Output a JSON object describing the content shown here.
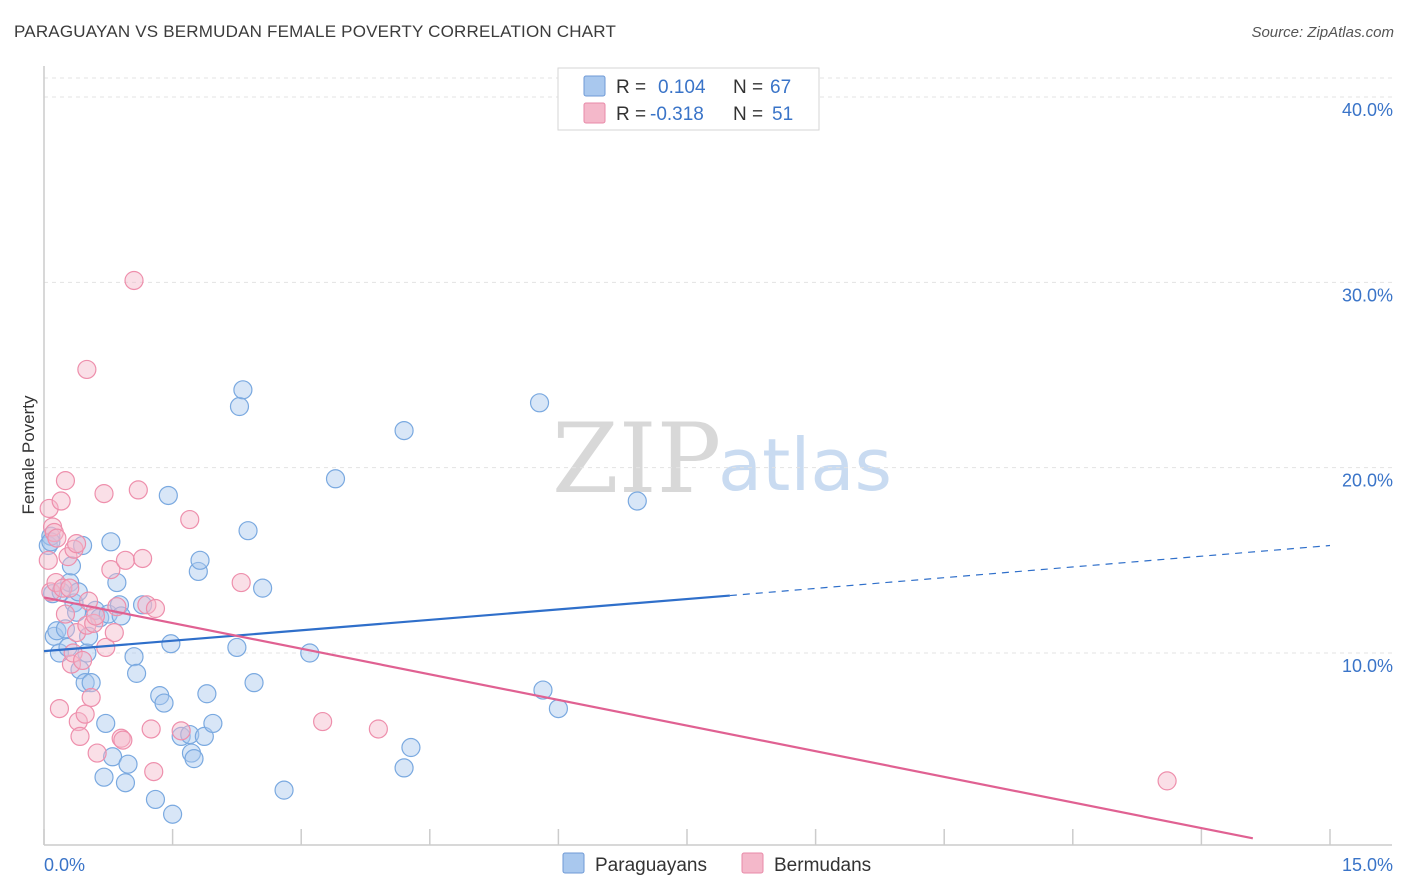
{
  "header": {
    "title": "PARAGUAYAN VS BERMUDAN FEMALE POVERTY CORRELATION CHART",
    "source": "Source: ZipAtlas.com"
  },
  "watermark": {
    "zip": "ZIP",
    "atlas": "atlas"
  },
  "legend_top": [
    {
      "r_label": "R =",
      "r_value": "0.104",
      "n_label": "N =",
      "n_value": "67",
      "color": "#a9c8ee"
    },
    {
      "r_label": "R =",
      "r_value": "-0.318",
      "n_label": "N =",
      "n_value": "51",
      "color": "#f4b8ca"
    }
  ],
  "legend_bottom": [
    {
      "label": "Paraguayans",
      "color": "#a9c8ee"
    },
    {
      "label": "Bermudans",
      "color": "#f4b8ca"
    }
  ],
  "chart_data": {
    "type": "scatter",
    "title": "PARAGUAYAN VS BERMUDAN FEMALE POVERTY CORRELATION CHART",
    "xlabel": "",
    "ylabel": "Female Poverty",
    "xlim": [
      0,
      15
    ],
    "ylim": [
      0,
      42
    ],
    "x_tick_labels": [
      {
        "value": 0,
        "label": "0.0%"
      },
      {
        "value": 15,
        "label": "15.0%"
      }
    ],
    "y_tick_labels": [
      {
        "value": 10,
        "label": "10.0%"
      },
      {
        "value": 20,
        "label": "20.0%"
      },
      {
        "value": 30,
        "label": "30.0%"
      },
      {
        "value": 40,
        "label": "40.0%"
      }
    ],
    "series": [
      {
        "name": "Paraguayans",
        "color": "#7aa9e0",
        "fill": "#a9c8ee",
        "trend_color": "#2f6fca",
        "trend": {
          "x0": 0,
          "y0": 10.1,
          "x1": 8.0,
          "y1": 13.1,
          "dash_to_x": 15,
          "dash_to_y": 15.8
        },
        "points": [
          [
            0.05,
            15.8
          ],
          [
            0.08,
            16.3
          ],
          [
            0.1,
            13.2
          ],
          [
            0.12,
            10.9
          ],
          [
            0.15,
            11.2
          ],
          [
            0.18,
            10.0
          ],
          [
            0.2,
            13.3
          ],
          [
            0.25,
            11.3
          ],
          [
            0.28,
            10.3
          ],
          [
            0.3,
            13.8
          ],
          [
            0.32,
            14.7
          ],
          [
            0.35,
            12.7
          ],
          [
            0.38,
            12.2
          ],
          [
            0.4,
            13.3
          ],
          [
            0.42,
            9.1
          ],
          [
            0.45,
            15.8
          ],
          [
            0.48,
            8.4
          ],
          [
            0.5,
            10.0
          ],
          [
            0.52,
            10.9
          ],
          [
            0.55,
            8.4
          ],
          [
            0.6,
            12.3
          ],
          [
            0.65,
            11.9
          ],
          [
            0.7,
            3.3
          ],
          [
            0.72,
            6.2
          ],
          [
            0.75,
            12.1
          ],
          [
            0.78,
            16.0
          ],
          [
            0.8,
            4.4
          ],
          [
            0.85,
            13.8
          ],
          [
            0.88,
            12.6
          ],
          [
            0.9,
            12.0
          ],
          [
            0.95,
            3.0
          ],
          [
            0.98,
            4.0
          ],
          [
            1.05,
            9.8
          ],
          [
            1.08,
            8.9
          ],
          [
            1.15,
            12.6
          ],
          [
            1.3,
            2.1
          ],
          [
            1.35,
            7.7
          ],
          [
            1.4,
            7.3
          ],
          [
            1.45,
            18.5
          ],
          [
            1.48,
            10.5
          ],
          [
            1.5,
            1.3
          ],
          [
            1.6,
            5.5
          ],
          [
            1.7,
            5.6
          ],
          [
            1.72,
            4.6
          ],
          [
            1.75,
            4.3
          ],
          [
            1.8,
            14.4
          ],
          [
            1.82,
            15.0
          ],
          [
            1.87,
            5.5
          ],
          [
            1.9,
            7.8
          ],
          [
            1.97,
            6.2
          ],
          [
            2.25,
            10.3
          ],
          [
            2.28,
            23.3
          ],
          [
            2.32,
            24.2
          ],
          [
            2.38,
            16.6
          ],
          [
            2.45,
            8.4
          ],
          [
            2.55,
            13.5
          ],
          [
            2.8,
            2.6
          ],
          [
            3.1,
            10.0
          ],
          [
            3.4,
            19.4
          ],
          [
            4.2,
            3.8
          ],
          [
            4.28,
            4.9
          ],
          [
            4.2,
            22.0
          ],
          [
            5.78,
            23.5
          ],
          [
            5.82,
            8.0
          ],
          [
            6.0,
            7.0
          ],
          [
            6.92,
            18.2
          ],
          [
            0.08,
            16.0
          ]
        ]
      },
      {
        "name": "Bermudans",
        "color": "#ee8fac",
        "fill": "#f4b8ca",
        "trend_color": "#e06192",
        "trend": {
          "x0": 0,
          "y0": 13.0,
          "x1": 14.1,
          "y1": 0.0
        },
        "points": [
          [
            0.05,
            15.0
          ],
          [
            0.06,
            17.8
          ],
          [
            0.08,
            13.3
          ],
          [
            0.1,
            16.8
          ],
          [
            0.12,
            16.5
          ],
          [
            0.14,
            13.8
          ],
          [
            0.18,
            7.0
          ],
          [
            0.2,
            18.2
          ],
          [
            0.22,
            13.5
          ],
          [
            0.25,
            19.3
          ],
          [
            0.25,
            12.1
          ],
          [
            0.28,
            15.2
          ],
          [
            0.32,
            9.4
          ],
          [
            0.34,
            10.0
          ],
          [
            0.35,
            15.6
          ],
          [
            0.38,
            11.1
          ],
          [
            0.38,
            15.9
          ],
          [
            0.4,
            6.3
          ],
          [
            0.42,
            5.5
          ],
          [
            0.45,
            9.6
          ],
          [
            0.48,
            6.7
          ],
          [
            0.5,
            11.5
          ],
          [
            0.52,
            12.8
          ],
          [
            0.55,
            7.6
          ],
          [
            0.58,
            11.6
          ],
          [
            0.62,
            4.6
          ],
          [
            0.7,
            18.6
          ],
          [
            0.72,
            10.3
          ],
          [
            0.78,
            14.5
          ],
          [
            0.82,
            11.1
          ],
          [
            0.85,
            12.5
          ],
          [
            0.9,
            5.4
          ],
          [
            0.92,
            5.3
          ],
          [
            0.95,
            15.0
          ],
          [
            1.05,
            30.1
          ],
          [
            1.1,
            18.8
          ],
          [
            1.15,
            15.1
          ],
          [
            1.2,
            12.6
          ],
          [
            1.25,
            5.9
          ],
          [
            1.28,
            3.6
          ],
          [
            1.3,
            12.4
          ],
          [
            1.6,
            5.8
          ],
          [
            1.7,
            17.2
          ],
          [
            2.3,
            13.8
          ],
          [
            3.25,
            6.3
          ],
          [
            3.9,
            5.9
          ],
          [
            13.1,
            3.1
          ],
          [
            0.5,
            25.3
          ],
          [
            0.3,
            13.5
          ],
          [
            0.6,
            12.0
          ],
          [
            0.15,
            16.2
          ]
        ]
      }
    ]
  }
}
